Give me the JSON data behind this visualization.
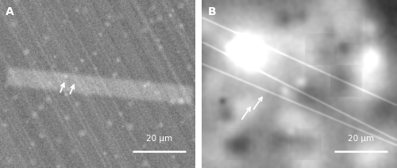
{
  "figsize": [
    5.0,
    2.12
  ],
  "dpi": 100,
  "label_A": "A",
  "label_B": "B",
  "scale_text": "20 μm",
  "label_color": "white",
  "label_fontsize": 10,
  "scale_fontsize": 7.5,
  "scale_bar_color": "white",
  "gap_color": "white",
  "arrow_color": "white",
  "panel_A_seed": 7,
  "panel_B_seed": 13,
  "panel_A_base_gray": 0.5,
  "panel_B_base_gray": 0.38
}
